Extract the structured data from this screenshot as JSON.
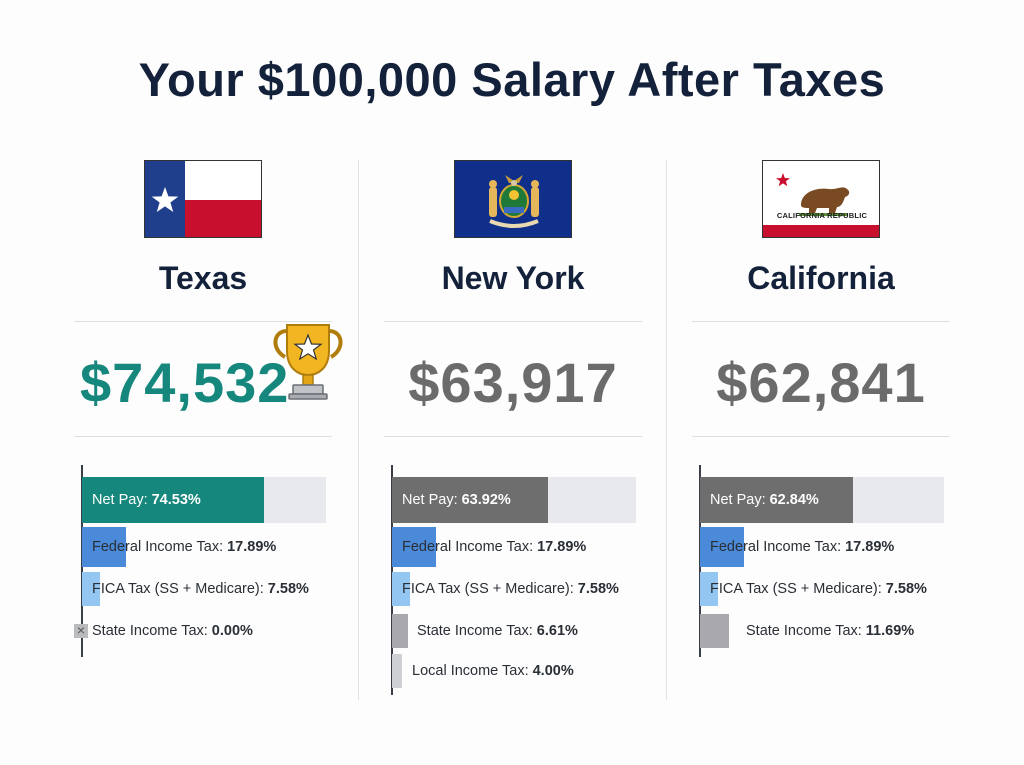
{
  "title": "Your $100,000 Salary After Taxes",
  "colors": {
    "winner_text": "#16877c",
    "net_pay_winner": "#16877c",
    "net_pay_other": "#6e6e6e",
    "federal": "#4a8ad8",
    "fica": "#93c6f1",
    "state": "#a9a9ad",
    "local": "#cfd0d4"
  },
  "states": [
    {
      "name": "Texas",
      "take_home": "$74,532",
      "winner": true,
      "flag_icon": "texas-flag-icon",
      "bars": [
        {
          "key": "net",
          "label": "Net Pay:",
          "value_text": "74.53%",
          "value": 74.53
        },
        {
          "key": "federal",
          "label": "Federal Income Tax:",
          "value_text": "17.89%",
          "value": 17.89
        },
        {
          "key": "fica",
          "label": "FICA Tax (SS + Medicare):",
          "value_text": "7.58%",
          "value": 7.58
        },
        {
          "key": "state",
          "label": "State Income Tax:",
          "value_text": "0.00%",
          "value": 0.0
        }
      ]
    },
    {
      "name": "New York",
      "take_home": "$63,917",
      "winner": false,
      "flag_icon": "new-york-flag-icon",
      "bars": [
        {
          "key": "net",
          "label": "Net Pay:",
          "value_text": "63.92%",
          "value": 63.92
        },
        {
          "key": "federal",
          "label": "Federal Income Tax:",
          "value_text": "17.89%",
          "value": 17.89
        },
        {
          "key": "fica",
          "label": "FICA Tax (SS + Medicare):",
          "value_text": "7.58%",
          "value": 7.58
        },
        {
          "key": "state",
          "label": "State Income Tax:",
          "value_text": "6.61%",
          "value": 6.61
        },
        {
          "key": "local",
          "label": "Local Income Tax:",
          "value_text": "4.00%",
          "value": 4.0
        }
      ]
    },
    {
      "name": "California",
      "take_home": "$62,841",
      "winner": false,
      "flag_icon": "california-flag-icon",
      "flag_text": "CALIFORNIA REPUBLIC",
      "bars": [
        {
          "key": "net",
          "label": "Net Pay:",
          "value_text": "62.84%",
          "value": 62.84
        },
        {
          "key": "federal",
          "label": "Federal Income Tax:",
          "value_text": "17.89%",
          "value": 17.89
        },
        {
          "key": "fica",
          "label": "FICA Tax (SS + Medicare):",
          "value_text": "7.58%",
          "value": 7.58
        },
        {
          "key": "state",
          "label": "State Income Tax:",
          "value_text": "11.69%",
          "value": 11.69
        }
      ]
    }
  ],
  "chart_data": {
    "type": "bar",
    "title": "Your $100,000 Salary After Taxes",
    "categories": [
      "Texas",
      "New York",
      "California"
    ],
    "series": [
      {
        "name": "Net Pay",
        "values": [
          74.53,
          63.92,
          62.84
        ]
      },
      {
        "name": "Federal Income Tax",
        "values": [
          17.89,
          17.89,
          17.89
        ]
      },
      {
        "name": "FICA Tax (SS + Medicare)",
        "values": [
          7.58,
          7.58,
          7.58
        ]
      },
      {
        "name": "State Income Tax",
        "values": [
          0.0,
          6.61,
          11.69
        ]
      },
      {
        "name": "Local Income Tax",
        "values": [
          null,
          4.0,
          null
        ]
      }
    ],
    "take_home": [
      "$74,532",
      "$63,917",
      "$62,841"
    ]
  }
}
